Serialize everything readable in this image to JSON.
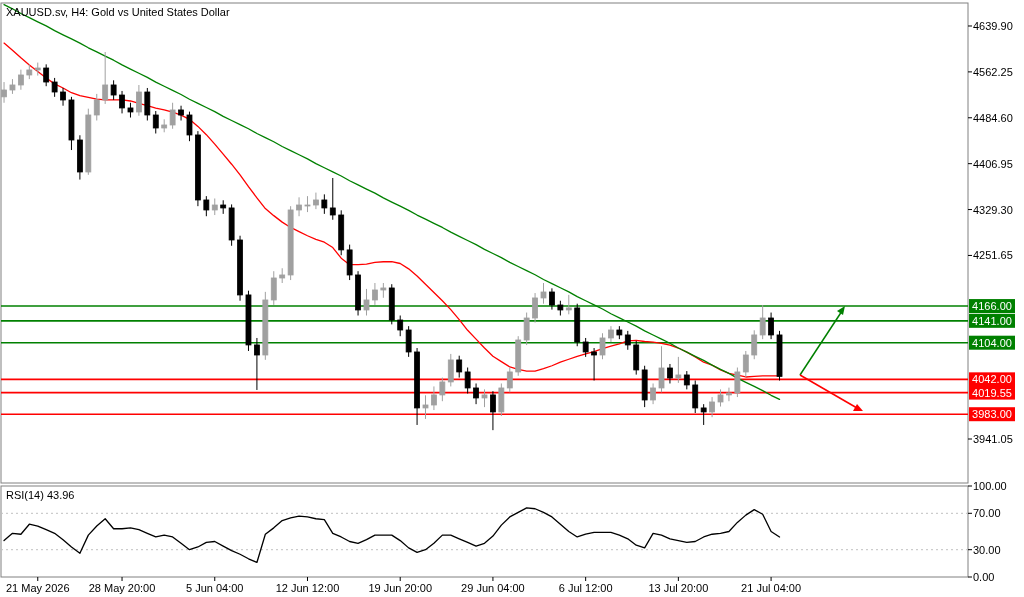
{
  "chart_data": [
    {
      "type": "candlestick",
      "title": "XAUUSD.sv, H4:  Gold vs United States Dollar",
      "tick_labels": "y",
      "ylim": [
        3866.6,
        4678.8
      ],
      "yticks": [
        {
          "value": 4639.9,
          "label": "4639.90"
        },
        {
          "value": 4562.25,
          "label": "4562.25"
        },
        {
          "value": 4484.6,
          "label": "4484.60"
        },
        {
          "value": 4406.95,
          "label": "4406.95"
        },
        {
          "value": 4329.3,
          "label": "4329.30"
        },
        {
          "value": 4251.65,
          "label": "4251.65"
        },
        {
          "value": 3941.05,
          "label": "3941.05"
        }
      ],
      "categories": [
        null,
        null,
        null,
        null,
        null,
        null,
        null,
        null,
        null,
        null,
        null,
        null,
        null,
        null,
        null,
        null,
        null,
        null,
        null,
        null,
        null,
        null,
        null,
        null,
        null,
        null,
        null,
        null,
        null,
        null,
        null,
        null,
        null,
        null,
        null,
        null,
        null,
        null,
        null,
        null,
        null,
        null,
        null,
        null,
        null,
        null,
        null,
        null,
        null,
        null,
        null,
        null,
        null,
        null,
        null,
        null,
        null,
        null,
        null,
        null,
        null,
        null,
        null,
        null,
        null,
        null,
        null,
        null,
        null,
        null,
        null,
        null,
        null,
        null,
        null,
        null,
        null,
        null,
        null,
        null,
        null,
        null,
        null,
        null,
        null,
        null,
        null,
        null,
        null,
        null,
        null,
        null,
        null,
        null,
        null,
        null,
        null,
        null,
        null,
        null,
        null,
        null,
        null,
        null,
        null,
        null,
        null,
        null,
        null,
        null,
        null,
        null,
        null,
        null,
        null
      ],
      "colors": [
        "#a0a0a0",
        "#a0a0a0",
        "#a0a0a0",
        "#a0a0a0",
        "#a0a0a0",
        "#000000",
        "#000000",
        "#000000",
        "#000000",
        "#000000",
        "#a0a0a0",
        "#a0a0a0",
        "#a0a0a0",
        "#000000",
        "#000000",
        "#000000",
        "#a0a0a0",
        "#000000",
        "#000000",
        "#a0a0a0",
        "#a0a0a0",
        "#000000",
        "#000000",
        "#000000",
        "#000000",
        "#a0a0a0",
        "#000000",
        "#000000",
        "#000000",
        "#000000",
        "#000000",
        "#a0a0a0",
        "#a0a0a0",
        "#a0a0a0",
        "#a0a0a0",
        "#a0a0a0",
        "#a0a0a0",
        "#a0a0a0",
        "#000000",
        "#000000",
        "#000000",
        "#000000",
        "#000000",
        "#a0a0a0",
        "#a0a0a0",
        "#a0a0a0",
        "#000000",
        "#000000",
        "#000000",
        "#000000",
        "#a0a0a0",
        "#a0a0a0",
        "#a0a0a0",
        "#a0a0a0",
        "#000000",
        "#000000",
        "#000000",
        "#a0a0a0",
        "#000000",
        "#a0a0a0",
        "#a0a0a0",
        "#a0a0a0",
        "#a0a0a0",
        "#a0a0a0",
        "#a0a0a0",
        "#000000",
        "#000000",
        "#a0a0a0",
        "#000000",
        "#000000",
        "#000000",
        "#a0a0a0",
        "#a0a0a0",
        "#000000",
        "#000000",
        "#000000",
        "#000000",
        "#a0a0a0",
        "#a0a0a0",
        "#000000",
        "#a0a0a0",
        "#000000",
        "#000000",
        "#000000",
        "#a0a0a0",
        "#a0a0a0",
        "#a0a0a0",
        "#a0a0a0",
        "#a0a0a0",
        "#a0a0a0",
        "#a0a0a0",
        "#000000",
        "#000000",
        null,
        null,
        null,
        null,
        null,
        null,
        null,
        null,
        null,
        null,
        null,
        null,
        null,
        null,
        null,
        null,
        null,
        null,
        null,
        null,
        null,
        null
      ],
      "ohlc": [
        [
          4520,
          4545,
          4510,
          4531.6
        ],
        [
          4531.6,
          4550,
          4525,
          4540.1
        ],
        [
          4540.1,
          4566,
          4532,
          4557.0
        ],
        [
          4557.0,
          4575,
          4550,
          4565.5
        ],
        [
          4565.5,
          4578,
          4556,
          4568.8
        ],
        [
          4568.8,
          4575,
          4538,
          4545.1
        ],
        [
          4545.1,
          4552,
          4520,
          4528.2
        ],
        [
          4528.2,
          4535,
          4505,
          4514.7
        ],
        [
          4514.7,
          4520,
          4430,
          4447.0
        ],
        [
          4447.0,
          4455,
          4380,
          4392.9
        ],
        [
          4392.9,
          4500,
          4388,
          4489.3
        ],
        [
          4489.3,
          4525,
          4480,
          4514.7
        ],
        [
          4514.7,
          4595.9,
          4508,
          4540.1
        ],
        [
          4540.1,
          4548,
          4515,
          4523.1
        ],
        [
          4523.1,
          4530,
          4492,
          4501.2
        ],
        [
          4501.2,
          4510,
          4485,
          4494.4
        ],
        [
          4494.4,
          4540,
          4488,
          4528.2
        ],
        [
          4528.2,
          4535,
          4480,
          4489.3
        ],
        [
          4489.3,
          4496,
          4458,
          4467.3
        ],
        [
          4467.3,
          4482,
          4460,
          4472.4
        ],
        [
          4472.4,
          4510,
          4466,
          4497.8
        ],
        [
          4497.8,
          4505,
          4480,
          4489.3
        ],
        [
          4489.3,
          4495,
          4445,
          4455.5
        ],
        [
          4455.5,
          4462,
          4335,
          4345.5
        ],
        [
          4345.5,
          4352,
          4318,
          4328.6
        ],
        [
          4328.6,
          4348,
          4320,
          4337.0
        ],
        [
          4337.0,
          4345,
          4322,
          4332.0
        ],
        [
          4332.0,
          4338,
          4268,
          4277.8
        ],
        [
          4277.8,
          4285,
          4175,
          4184.8
        ],
        [
          4184.8,
          4192,
          4090,
          4100.2
        ],
        [
          4100.2,
          4112,
          4024,
          4083.2
        ],
        [
          4083.2,
          4190,
          4075,
          4176.3
        ],
        [
          4176.3,
          4225,
          4168,
          4213.5
        ],
        [
          4213.5,
          4230,
          4205,
          4218.6
        ],
        [
          4218.6,
          4335,
          4210,
          4328.6
        ],
        [
          4328.6,
          4350,
          4318,
          4337.0
        ],
        [
          4337.0,
          4352,
          4325,
          4337.0
        ],
        [
          4337.0,
          4358,
          4330,
          4345.5
        ],
        [
          4345.5,
          4355,
          4322,
          4332.0
        ],
        [
          4332.0,
          4382.7,
          4312,
          4320.1
        ],
        [
          4320.1,
          4328,
          4252,
          4261.0
        ],
        [
          4261.0,
          4270,
          4210,
          4218.6
        ],
        [
          4218.6,
          4225,
          4150,
          4159.4
        ],
        [
          4159.4,
          4195,
          4150,
          4176.3
        ],
        [
          4176.3,
          4205,
          4168,
          4193.2
        ],
        [
          4193.2,
          4205,
          4180,
          4196.6
        ],
        [
          4196.6,
          4203,
          4135,
          4142.4
        ],
        [
          4142.4,
          4150,
          4115,
          4125.5
        ],
        [
          4125.5,
          4132,
          4080,
          4088.3
        ],
        [
          4088.3,
          4095,
          3964.8,
          3993.6
        ],
        [
          3993.6,
          4015,
          3975,
          3998.6
        ],
        [
          3998.6,
          4030,
          3990,
          4015.6
        ],
        [
          4015.6,
          4045,
          4005,
          4037.6
        ],
        [
          4037.6,
          4085,
          4030,
          4074.8
        ],
        [
          4074.8,
          4082,
          4045,
          4054.5
        ],
        [
          4054.5,
          4062,
          4018,
          4027.4
        ],
        [
          4027.4,
          4035,
          4000,
          4010.5
        ],
        [
          4010.5,
          4025,
          3995,
          4015.6
        ],
        [
          4015.6,
          4022,
          3956,
          3986.8
        ],
        [
          3986.8,
          4035,
          3980,
          4027.4
        ],
        [
          4027.4,
          4062,
          4020,
          4054.5
        ],
        [
          4054.5,
          4115,
          4048,
          4108.6
        ],
        [
          4108.6,
          4155,
          4100,
          4145.8
        ],
        [
          4145.8,
          4188,
          4138,
          4179.7
        ],
        [
          4179.7,
          4205,
          4170,
          4189.8
        ],
        [
          4189.8,
          4196,
          4160,
          4167.8
        ],
        [
          4167.8,
          4175,
          4150,
          4159.4
        ],
        [
          4159.4,
          4185,
          4152,
          4162.8
        ],
        [
          4162.8,
          4170,
          4098,
          4105.2
        ],
        [
          4105.2,
          4112,
          4080,
          4088.3
        ],
        [
          4088.3,
          4095,
          4040,
          4083.2
        ],
        [
          4083.2,
          4120,
          4076,
          4112.0
        ],
        [
          4112.0,
          4132,
          4105,
          4125.5
        ],
        [
          4125.5,
          4132,
          4110,
          4117.1
        ],
        [
          4117.1,
          4124,
          4092,
          4100.2
        ],
        [
          4100.2,
          4107,
          4050,
          4057.9
        ],
        [
          4057.9,
          4065,
          3995,
          4007.1
        ],
        [
          4007.1,
          4035,
          4000,
          4027.4
        ],
        [
          4027.4,
          4098,
          4020,
          4061.2
        ],
        [
          4061.2,
          4068,
          4035,
          4044.3
        ],
        [
          4044.3,
          4080,
          4036,
          4049.4
        ],
        [
          4049.4,
          4056,
          4025,
          4032.5
        ],
        [
          4032.5,
          4040,
          3985,
          3993.6
        ],
        [
          3993.6,
          4000,
          3964.8,
          3986.8
        ],
        [
          3986.8,
          4012,
          3978,
          4003.7
        ],
        [
          4003.7,
          4025,
          3996,
          4015.6
        ],
        [
          4015.6,
          4028,
          4005,
          4018.9
        ],
        [
          4018.9,
          4062,
          4012,
          4054.5
        ],
        [
          4054.5,
          4090,
          4046,
          4083.2
        ],
        [
          4083.2,
          4125,
          4076,
          4117.1
        ],
        [
          4117.1,
          4167.8,
          4110,
          4145.8
        ],
        [
          4145.8,
          4155,
          4110,
          4117.1
        ],
        [
          4117.1,
          4124,
          4040,
          4047.0
        ],
        null,
        null,
        null,
        null,
        null,
        null,
        null,
        null,
        null,
        null,
        null,
        null,
        null,
        null,
        null,
        null,
        null,
        null,
        null,
        null,
        null,
        null
      ],
      "series": [
        {
          "type": "line",
          "color": "#ff0000",
          "values": [
            4611,
            4599,
            4586,
            4574,
            4563,
            4552,
            4542,
            4535,
            4527,
            4522,
            4519,
            4516,
            4515,
            4515,
            4515,
            4513,
            4509,
            4505,
            4501,
            4498,
            4494,
            4489,
            4482,
            4470,
            4456,
            4440,
            4423,
            4406,
            4388,
            4368,
            4349,
            4331,
            4319,
            4308,
            4299,
            4292,
            4285,
            4279,
            4274,
            4265,
            4247,
            4236,
            4236,
            4237,
            4240,
            4241,
            4241,
            4238,
            4229,
            4217,
            4203,
            4189,
            4175,
            4160,
            4143,
            4125,
            4110,
            4095,
            4081,
            4072,
            4063,
            4059,
            4056,
            4056,
            4060,
            4065,
            4071,
            4076,
            4081,
            4085,
            4089,
            4094,
            4098,
            4102,
            4107,
            4108,
            4106,
            4105,
            4103,
            4100,
            4095,
            4088,
            4080,
            4071,
            4066,
            4058,
            4052,
            4049,
            4046,
            4047,
            4048,
            4048,
            4048,
            null,
            null,
            null,
            null,
            null,
            null,
            null,
            null,
            null,
            null,
            null,
            null,
            null,
            null,
            null,
            null,
            null,
            null,
            null,
            null,
            null,
            null
          ]
        },
        {
          "type": "line",
          "color": "#008000",
          "values": [
            4676,
            4669,
            4661,
            4654,
            4647,
            4640,
            4632,
            4625,
            4618,
            4611,
            4603,
            4596,
            4589,
            4582,
            4574,
            4567,
            4560,
            4553,
            4545,
            4538,
            4531,
            4524,
            4516,
            4509,
            4502,
            4495,
            4487,
            4480,
            4473,
            4466,
            4458,
            4451,
            4444,
            4436,
            4429,
            4422,
            4415,
            4407,
            4400,
            4393,
            4386,
            4378,
            4371,
            4364,
            4357,
            4349,
            4342,
            4335,
            4328,
            4320,
            4313,
            4306,
            4299,
            4291,
            4284,
            4277,
            4270,
            4262,
            4255,
            4248,
            4240,
            4233,
            4226,
            4219,
            4211,
            4204,
            4197,
            4190,
            4182,
            4175,
            4168,
            4161,
            4153,
            4146,
            4139,
            4132,
            4124,
            4117,
            4110,
            4103,
            4095,
            4088,
            4081,
            4074,
            4066,
            4059,
            4052,
            4044,
            4037,
            4030,
            4023,
            4015,
            4008,
            null,
            null,
            null,
            null,
            null,
            null,
            null,
            null,
            null,
            null,
            null,
            null,
            null,
            null,
            null,
            null,
            null,
            null,
            null,
            null,
            null,
            null
          ]
        }
      ],
      "ref_lines": [
        {
          "axis": "y",
          "value": 4166,
          "label": "4166.00",
          "color": "#008000"
        },
        {
          "axis": "y",
          "value": 4141,
          "label": "4141.00",
          "color": "#008000"
        },
        {
          "axis": "y",
          "value": 4104,
          "label": "4104.00",
          "color": "#008000"
        },
        {
          "axis": "y",
          "value": 4042,
          "label": "4042.00",
          "color": "#ff0000"
        },
        {
          "axis": "y",
          "value": 4019.55,
          "label": "4019.55",
          "color": "#ff0000"
        },
        {
          "axis": "y",
          "value": 3983,
          "label": "3983.00",
          "color": "#ff0000"
        }
      ]
    },
    {
      "type": "line",
      "title": "RSI(14) 43.96",
      "ylim": [
        0,
        100
      ],
      "yticks": [
        {
          "value": 0,
          "label": "0.00"
        },
        {
          "value": 30,
          "label": "30.00"
        },
        {
          "value": 70,
          "label": "70.00"
        },
        {
          "value": 100,
          "label": "100.00"
        }
      ],
      "categories": [
        null,
        null,
        null,
        null,
        "21 May 2026",
        null,
        null,
        null,
        null,
        null,
        null,
        null,
        null,
        null,
        "28 May 20:00",
        null,
        null,
        null,
        null,
        null,
        null,
        null,
        null,
        null,
        null,
        "5 Jun 04:00",
        null,
        null,
        null,
        null,
        null,
        null,
        null,
        null,
        null,
        null,
        "12 Jun 12:00",
        null,
        null,
        null,
        null,
        null,
        null,
        null,
        null,
        null,
        null,
        "19 Jun 20:00",
        null,
        null,
        null,
        null,
        null,
        null,
        null,
        null,
        null,
        null,
        "29 Jun 04:00",
        null,
        null,
        null,
        null,
        null,
        null,
        null,
        null,
        null,
        null,
        "6 Jul 12:00",
        null,
        null,
        null,
        null,
        null,
        null,
        null,
        null,
        null,
        null,
        "13 Jul 20:00",
        null,
        null,
        null,
        null,
        null,
        null,
        null,
        null,
        null,
        null,
        "21 Jul 04:00",
        null,
        null,
        null,
        null,
        null,
        null,
        null,
        null,
        null,
        null,
        null,
        null,
        null,
        null,
        null,
        null,
        null,
        null,
        null,
        null,
        null,
        null,
        null
      ],
      "series": [
        {
          "color": "#000000",
          "values": [
            40,
            48,
            47,
            58,
            56,
            52,
            48,
            41,
            33,
            26,
            46,
            56,
            64,
            53,
            53,
            54,
            52,
            48,
            44,
            46,
            44,
            37,
            30,
            33,
            38,
            39,
            34,
            29,
            25,
            20,
            16,
            47,
            54,
            62,
            65,
            67,
            66,
            64,
            63,
            48,
            44,
            39,
            37,
            41,
            46,
            46,
            46,
            40,
            32,
            27,
            30,
            37,
            46,
            46,
            42,
            38,
            34,
            37,
            45,
            57,
            66,
            71,
            76,
            75,
            71,
            66,
            58,
            50,
            44,
            47,
            49,
            49,
            49,
            46,
            42,
            35,
            32,
            48,
            46,
            42,
            40,
            38,
            39,
            44,
            47,
            48,
            50,
            60,
            68,
            74,
            69,
            50,
            44,
            null,
            null,
            null,
            null,
            null,
            null,
            null,
            null,
            null,
            null,
            null,
            null,
            null,
            null,
            null,
            null,
            null,
            null,
            null,
            null,
            null,
            null
          ]
        }
      ],
      "ref_lines": [
        {
          "axis": "y",
          "value": 70,
          "color": "#c0c0c0",
          "line_style": "dotted"
        },
        {
          "axis": "y",
          "value": 30,
          "color": "#c0c0c0",
          "line_style": "dotted"
        }
      ]
    }
  ]
}
